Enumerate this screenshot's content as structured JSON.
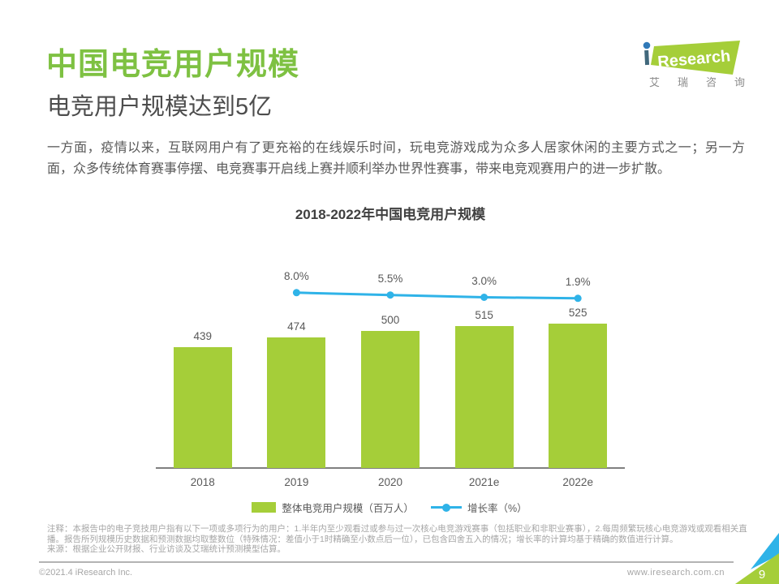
{
  "header": {
    "title": "中国电竞用户规模",
    "subtitle": "电竞用户规模达到5亿",
    "body": "一方面，疫情以来，互联网用户有了更充裕的在线娱乐时间，玩电竞游戏成为众多人居家休闲的主要方式之一；另一方面，众多传统体育赛事停摆、电竞赛事开启线上赛并顺利举办世界性赛事，带来电竞观赛用户的进一步扩散。"
  },
  "logo": {
    "brand": "Research",
    "brand_cn": "艾瑞咨询"
  },
  "chart_data": {
    "type": "bar",
    "title": "2018-2022年中国电竞用户规模",
    "categories": [
      "2018",
      "2019",
      "2020",
      "2021e",
      "2022e"
    ],
    "series": [
      {
        "name": "整体电竞用户规模（百万人）",
        "type": "bar",
        "values": [
          439,
          474,
          500,
          515,
          525
        ],
        "color": "#A5CE39"
      },
      {
        "name": "增长率（%）",
        "type": "line",
        "values": [
          null,
          8.0,
          5.5,
          3.0,
          1.9
        ],
        "labels": [
          "",
          "8.0%",
          "5.5%",
          "3.0%",
          "1.9%"
        ],
        "color": "#2FB3E8"
      }
    ],
    "ylim": [
      0,
      760
    ],
    "grid": false,
    "legend_position": "bottom"
  },
  "notes": {
    "note": "注释：本报告中的电子竞技用户指有以下一项或多项行为的用户：1.半年内至少观看过或参与过一次核心电竞游戏赛事（包括职业和非职业赛事），2.每周频繁玩核心电竞游戏或观看相关直播。报告所列规模历史数据和预测数据均取整数位（特殊情况：差值小于1时精确至小数点后一位），已包含四舍五入的情况；增长率的计算均基于精确的数值进行计算。",
    "source": "来源：根据企业公开财报、行业访谈及艾瑞统计预测模型估算。"
  },
  "footer": {
    "copyright": "©2021.4 iResearch Inc.",
    "website": "www.iresearch.com.cn",
    "page_number": "9"
  }
}
